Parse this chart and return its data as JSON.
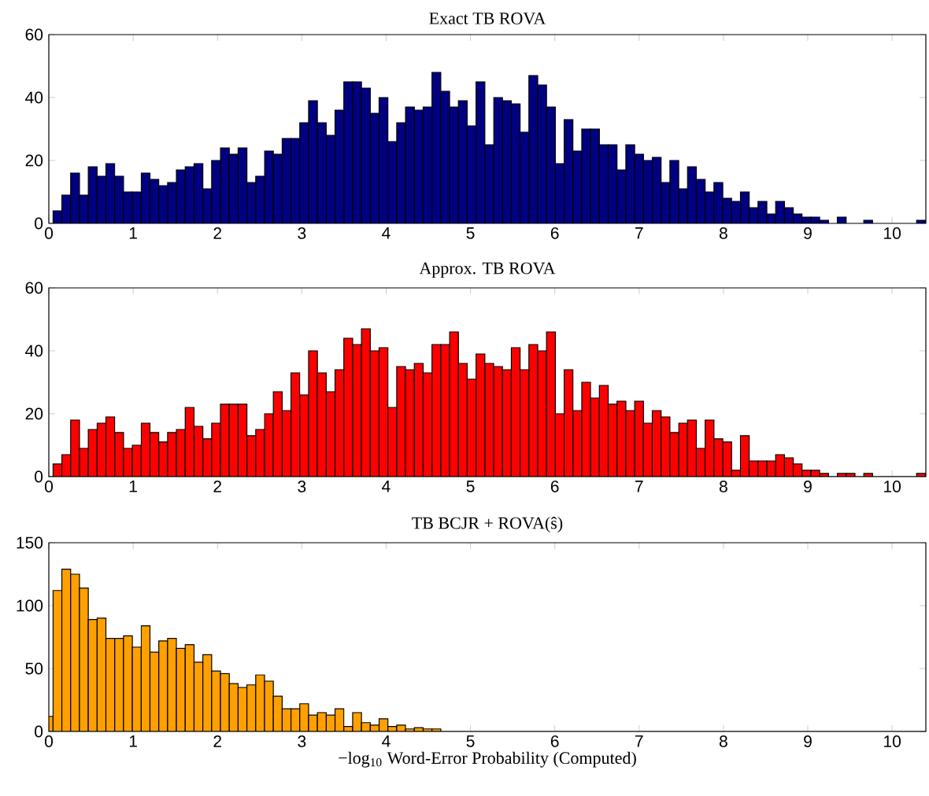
{
  "chart_data": [
    {
      "type": "histogram",
      "title": "Exact TB ROVA",
      "color": "#000080",
      "xlim": [
        0,
        10.4
      ],
      "xticks": [
        0,
        1,
        2,
        3,
        4,
        5,
        6,
        7,
        8,
        9,
        10
      ],
      "ylim": [
        0,
        60
      ],
      "yticks": [
        0,
        20,
        40,
        60
      ],
      "bins": [
        0.05,
        0.1545,
        0.259,
        0.3635,
        0.468,
        0.5725,
        0.677,
        0.7815,
        0.886,
        0.9905,
        1.095,
        1.1995,
        1.304,
        1.4085,
        1.513,
        1.6175,
        1.722,
        1.8265,
        1.931,
        2.0355,
        2.14,
        2.2445,
        2.349,
        2.4535,
        2.558,
        2.6625,
        2.767,
        2.8715,
        2.976,
        3.0805,
        3.185,
        3.2895,
        3.394,
        3.4985,
        3.603,
        3.7075,
        3.812,
        3.9165,
        4.021,
        4.1255,
        4.23,
        4.3345,
        4.439,
        4.5435,
        4.648,
        4.7525,
        4.857,
        4.9615,
        5.066,
        5.1705,
        5.275,
        5.3795,
        5.484,
        5.5885,
        5.693,
        5.7975,
        5.902,
        6.0065,
        6.111,
        6.2155,
        6.32,
        6.4245,
        6.529,
        6.6335,
        6.738,
        6.8425,
        6.947,
        7.0515,
        7.156,
        7.2605,
        7.365,
        7.4695,
        7.574,
        7.6785,
        7.783,
        7.8875,
        7.992,
        8.0965,
        8.201,
        8.3055,
        8.41,
        8.5145,
        8.619,
        8.7235,
        8.828,
        8.9325,
        9.037,
        9.1415,
        9.246,
        9.3505,
        9.455,
        9.5595,
        9.664,
        9.7685,
        9.873,
        9.9775,
        10.082,
        10.1865,
        10.291,
        10.3955
      ],
      "values": [
        4,
        9,
        16,
        9,
        18,
        15,
        19,
        15,
        10,
        10,
        16,
        14,
        12,
        13,
        17,
        18,
        19,
        11,
        20,
        24,
        22,
        24,
        13,
        15,
        23,
        22,
        27,
        27,
        32,
        39,
        32,
        28,
        36,
        45,
        45,
        43,
        35,
        40,
        26,
        32,
        37,
        36,
        37,
        48,
        42,
        37,
        39,
        31,
        45,
        25,
        40,
        39,
        38,
        29,
        47,
        44,
        37,
        19,
        33,
        23,
        30,
        30,
        25,
        25,
        17,
        25,
        22,
        20,
        21,
        13,
        20,
        11,
        18,
        14,
        10,
        13,
        8,
        7,
        10,
        5,
        7,
        3,
        7,
        5,
        3,
        2,
        2,
        1,
        0,
        2,
        0,
        0,
        1,
        0,
        0,
        0,
        0,
        0,
        1
      ]
    },
    {
      "type": "histogram",
      "title": "Approx. TB ROVA",
      "color": "#ff0000",
      "xlim": [
        0,
        10.4
      ],
      "xticks": [
        0,
        1,
        2,
        3,
        4,
        5,
        6,
        7,
        8,
        9,
        10
      ],
      "ylim": [
        0,
        60
      ],
      "yticks": [
        0,
        20,
        40,
        60
      ],
      "bins": [
        0.05,
        0.1545,
        0.259,
        0.3635,
        0.468,
        0.5725,
        0.677,
        0.7815,
        0.886,
        0.9905,
        1.095,
        1.1995,
        1.304,
        1.4085,
        1.513,
        1.6175,
        1.722,
        1.8265,
        1.931,
        2.0355,
        2.14,
        2.2445,
        2.349,
        2.4535,
        2.558,
        2.6625,
        2.767,
        2.8715,
        2.976,
        3.0805,
        3.185,
        3.2895,
        3.394,
        3.4985,
        3.603,
        3.7075,
        3.812,
        3.9165,
        4.021,
        4.1255,
        4.23,
        4.3345,
        4.439,
        4.5435,
        4.648,
        4.7525,
        4.857,
        4.9615,
        5.066,
        5.1705,
        5.275,
        5.3795,
        5.484,
        5.5885,
        5.693,
        5.7975,
        5.902,
        6.0065,
        6.111,
        6.2155,
        6.32,
        6.4245,
        6.529,
        6.6335,
        6.738,
        6.8425,
        6.947,
        7.0515,
        7.156,
        7.2605,
        7.365,
        7.4695,
        7.574,
        7.6785,
        7.783,
        7.8875,
        7.992,
        8.0965,
        8.201,
        8.3055,
        8.41,
        8.5145,
        8.619,
        8.7235,
        8.828,
        8.9325,
        9.037,
        9.1415,
        9.246,
        9.3505,
        9.455,
        9.5595,
        9.664,
        9.7685,
        9.873,
        9.9775,
        10.082,
        10.1865,
        10.291,
        10.3955
      ],
      "values": [
        4,
        7,
        18,
        9,
        15,
        17,
        19,
        14,
        9,
        10,
        17,
        14,
        11,
        14,
        15,
        22,
        16,
        12,
        17,
        23,
        23,
        23,
        13,
        15,
        20,
        27,
        21,
        33,
        26,
        40,
        33,
        27,
        34,
        44,
        42,
        47,
        40,
        41,
        22,
        35,
        34,
        36,
        33,
        42,
        42,
        46,
        36,
        31,
        39,
        36,
        35,
        34,
        41,
        34,
        42,
        40,
        46,
        20,
        34,
        21,
        30,
        25,
        29,
        23,
        24,
        21,
        24,
        17,
        21,
        19,
        14,
        17,
        18,
        9,
        18,
        12,
        11,
        2,
        13,
        5,
        5,
        5,
        7,
        6,
        4,
        2,
        2,
        1,
        0,
        1,
        1,
        0,
        1,
        0,
        0,
        0,
        0,
        0,
        1
      ]
    },
    {
      "type": "histogram",
      "title": "TB BCJR + ROVA(ŝ)",
      "xlabel": "−log$_{10}$ Word-Error Probability (Computed)",
      "color": "#ffa000",
      "xlim": [
        0,
        10.4
      ],
      "xticks": [
        0,
        1,
        2,
        3,
        4,
        5,
        6,
        7,
        8,
        9,
        10
      ],
      "ylim": [
        0,
        150
      ],
      "yticks": [
        0,
        50,
        100,
        150
      ],
      "bins": [
        0,
        0.05,
        0.1545,
        0.259,
        0.3635,
        0.468,
        0.5725,
        0.677,
        0.7815,
        0.886,
        0.9905,
        1.095,
        1.1995,
        1.304,
        1.4085,
        1.513,
        1.6175,
        1.722,
        1.8265,
        1.931,
        2.0355,
        2.14,
        2.2445,
        2.349,
        2.4535,
        2.558,
        2.6625,
        2.767,
        2.8715,
        2.976,
        3.0805,
        3.185,
        3.2895,
        3.394,
        3.4985,
        3.603,
        3.7075,
        3.812,
        3.9165,
        4.021,
        4.1255,
        4.23,
        4.3345,
        4.439,
        4.5435,
        4.648
      ],
      "values": [
        12,
        112,
        129,
        125,
        114,
        89,
        90,
        74,
        74,
        76,
        67,
        84,
        63,
        72,
        74,
        66,
        69,
        55,
        61,
        48,
        46,
        38,
        35,
        37,
        45,
        40,
        28,
        18,
        18,
        22,
        13,
        15,
        13,
        18,
        4,
        15,
        7,
        5,
        10,
        4,
        5,
        2,
        3,
        2,
        2
      ]
    }
  ]
}
